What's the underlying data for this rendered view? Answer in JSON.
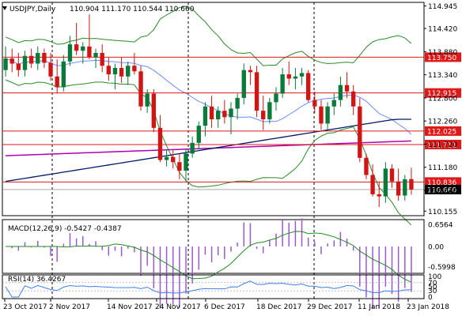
{
  "header": {
    "symbol": "USDJPY,Daily",
    "ohlc": "110.904 111.170 110.544 110.660"
  },
  "colors": {
    "bull": "#0a7a3a",
    "bear": "#d11515",
    "sma_long": "#001a66",
    "ema": "#b000b0",
    "bollinger": "#2a8a2a",
    "bb_mid": "#6b8cff",
    "level": "#e01818",
    "macd_hist": "#9b59d0",
    "macd_signal": "#228b22",
    "rsi": "#3f7fe6"
  },
  "macd": {
    "label": "MACD(12,26,9) -0.5427 -0.4387"
  },
  "rsi": {
    "label": "RSI(14) 36.4267"
  },
  "chart_data": {
    "type": "candlestick",
    "price_ticks": [
      "114.945",
      "114.420",
      "113.880",
      "113.340",
      "112.800",
      "112.260",
      "111.720",
      "111.180",
      "110.640",
      "110.155"
    ],
    "price_range": [
      110.05,
      115.03
    ],
    "levels": [
      113.75,
      112.915,
      112.025,
      111.711,
      110.836
    ],
    "level_labels": [
      "113.750",
      "112.915",
      "112.025",
      "111.711",
      "110.836"
    ],
    "current": {
      "value": 110.66,
      "label": "110.660"
    },
    "x_labels": [
      "23 Oct 2017",
      "2 Nov 2017",
      "14 Nov 2017",
      "24 Nov 2017",
      "6 Dec 2017",
      "18 Dec 2017",
      "29 Dec 2017",
      "11 Jan 2018",
      "23 Jan 2018"
    ],
    "macd_ticks": [
      "0.6564",
      "0.00",
      "-0.5998"
    ],
    "macd_range": [
      -0.75,
      0.75
    ],
    "rsi_ticks": [
      "100",
      "70",
      "50",
      "30",
      "0"
    ],
    "candles": [
      {
        "o": 113.45,
        "h": 114.0,
        "l": 113.3,
        "c": 113.72
      },
      {
        "o": 113.72,
        "h": 113.95,
        "l": 113.4,
        "c": 113.6
      },
      {
        "o": 113.6,
        "h": 113.85,
        "l": 113.3,
        "c": 113.45
      },
      {
        "o": 113.45,
        "h": 113.9,
        "l": 113.3,
        "c": 113.78
      },
      {
        "o": 113.78,
        "h": 113.95,
        "l": 113.5,
        "c": 113.6
      },
      {
        "o": 113.6,
        "h": 114.0,
        "l": 113.45,
        "c": 113.85
      },
      {
        "o": 113.85,
        "h": 113.95,
        "l": 113.5,
        "c": 113.62
      },
      {
        "o": 113.62,
        "h": 113.85,
        "l": 113.2,
        "c": 113.3
      },
      {
        "o": 113.3,
        "h": 113.7,
        "l": 112.9,
        "c": 113.05
      },
      {
        "o": 113.05,
        "h": 113.8,
        "l": 112.95,
        "c": 113.65
      },
      {
        "o": 113.65,
        "h": 114.25,
        "l": 113.55,
        "c": 114.05
      },
      {
        "o": 114.05,
        "h": 114.55,
        "l": 113.8,
        "c": 113.9
      },
      {
        "o": 113.9,
        "h": 114.1,
        "l": 113.6,
        "c": 114.0
      },
      {
        "o": 114.0,
        "h": 114.75,
        "l": 113.7,
        "c": 113.75
      },
      {
        "o": 113.75,
        "h": 113.95,
        "l": 113.5,
        "c": 113.85
      },
      {
        "o": 113.85,
        "h": 114.05,
        "l": 113.4,
        "c": 113.55
      },
      {
        "o": 113.55,
        "h": 113.75,
        "l": 113.2,
        "c": 113.35
      },
      {
        "o": 113.35,
        "h": 113.6,
        "l": 113.0,
        "c": 113.5
      },
      {
        "o": 113.5,
        "h": 113.75,
        "l": 113.15,
        "c": 113.3
      },
      {
        "o": 113.3,
        "h": 113.65,
        "l": 113.1,
        "c": 113.55
      },
      {
        "o": 113.55,
        "h": 113.85,
        "l": 113.35,
        "c": 113.42
      },
      {
        "o": 113.42,
        "h": 113.55,
        "l": 112.5,
        "c": 112.6
      },
      {
        "o": 112.6,
        "h": 113.0,
        "l": 112.45,
        "c": 112.9
      },
      {
        "o": 112.9,
        "h": 113.0,
        "l": 112.0,
        "c": 112.1
      },
      {
        "o": 112.1,
        "h": 112.4,
        "l": 111.3,
        "c": 111.35
      },
      {
        "o": 111.35,
        "h": 111.6,
        "l": 111.2,
        "c": 111.42
      },
      {
        "o": 111.42,
        "h": 111.6,
        "l": 111.15,
        "c": 111.3
      },
      {
        "o": 111.3,
        "h": 111.5,
        "l": 110.9,
        "c": 111.1
      },
      {
        "o": 111.1,
        "h": 111.6,
        "l": 110.85,
        "c": 111.5
      },
      {
        "o": 111.5,
        "h": 111.9,
        "l": 111.4,
        "c": 111.75
      },
      {
        "o": 111.75,
        "h": 112.25,
        "l": 111.6,
        "c": 112.15
      },
      {
        "o": 112.15,
        "h": 112.7,
        "l": 111.9,
        "c": 112.6
      },
      {
        "o": 112.6,
        "h": 112.85,
        "l": 112.1,
        "c": 112.3
      },
      {
        "o": 112.3,
        "h": 112.6,
        "l": 112.1,
        "c": 112.5
      },
      {
        "o": 112.5,
        "h": 112.75,
        "l": 112.2,
        "c": 112.35
      },
      {
        "o": 112.35,
        "h": 112.7,
        "l": 111.95,
        "c": 112.55
      },
      {
        "o": 112.55,
        "h": 112.9,
        "l": 112.3,
        "c": 112.8
      },
      {
        "o": 112.8,
        "h": 113.6,
        "l": 112.65,
        "c": 113.45
      },
      {
        "o": 113.45,
        "h": 113.55,
        "l": 113.1,
        "c": 113.4
      },
      {
        "o": 113.4,
        "h": 113.55,
        "l": 112.35,
        "c": 112.5
      },
      {
        "o": 112.5,
        "h": 112.85,
        "l": 112.05,
        "c": 112.3
      },
      {
        "o": 112.3,
        "h": 112.8,
        "l": 112.2,
        "c": 112.7
      },
      {
        "o": 112.7,
        "h": 113.05,
        "l": 112.5,
        "c": 112.9
      },
      {
        "o": 112.9,
        "h": 113.5,
        "l": 112.8,
        "c": 113.35
      },
      {
        "o": 113.35,
        "h": 113.65,
        "l": 113.1,
        "c": 113.25
      },
      {
        "o": 113.25,
        "h": 113.5,
        "l": 113.0,
        "c": 113.3
      },
      {
        "o": 113.3,
        "h": 113.5,
        "l": 113.1,
        "c": 113.38
      },
      {
        "o": 113.38,
        "h": 113.45,
        "l": 112.7,
        "c": 112.75
      },
      {
        "o": 112.75,
        "h": 112.95,
        "l": 112.45,
        "c": 112.6
      },
      {
        "o": 112.6,
        "h": 112.75,
        "l": 112.05,
        "c": 112.2
      },
      {
        "o": 112.2,
        "h": 112.7,
        "l": 112.05,
        "c": 112.6
      },
      {
        "o": 112.6,
        "h": 112.9,
        "l": 112.4,
        "c": 112.75
      },
      {
        "o": 112.75,
        "h": 113.3,
        "l": 112.6,
        "c": 113.1
      },
      {
        "o": 113.1,
        "h": 113.4,
        "l": 112.8,
        "c": 112.95
      },
      {
        "o": 112.95,
        "h": 113.1,
        "l": 112.4,
        "c": 112.6
      },
      {
        "o": 112.6,
        "h": 112.8,
        "l": 111.3,
        "c": 111.4
      },
      {
        "o": 111.4,
        "h": 111.5,
        "l": 110.9,
        "c": 111.0
      },
      {
        "o": 111.0,
        "h": 111.25,
        "l": 110.5,
        "c": 110.55
      },
      {
        "o": 110.55,
        "h": 110.85,
        "l": 110.25,
        "c": 110.5
      },
      {
        "o": 110.5,
        "h": 111.3,
        "l": 110.35,
        "c": 111.15
      },
      {
        "o": 111.15,
        "h": 111.25,
        "l": 110.7,
        "c": 110.85
      },
      {
        "o": 110.85,
        "h": 111.15,
        "l": 110.4,
        "c": 110.52
      },
      {
        "o": 110.52,
        "h": 111.0,
        "l": 110.4,
        "c": 110.9
      },
      {
        "o": 110.904,
        "h": 111.17,
        "l": 110.544,
        "c": 110.66
      }
    ]
  }
}
